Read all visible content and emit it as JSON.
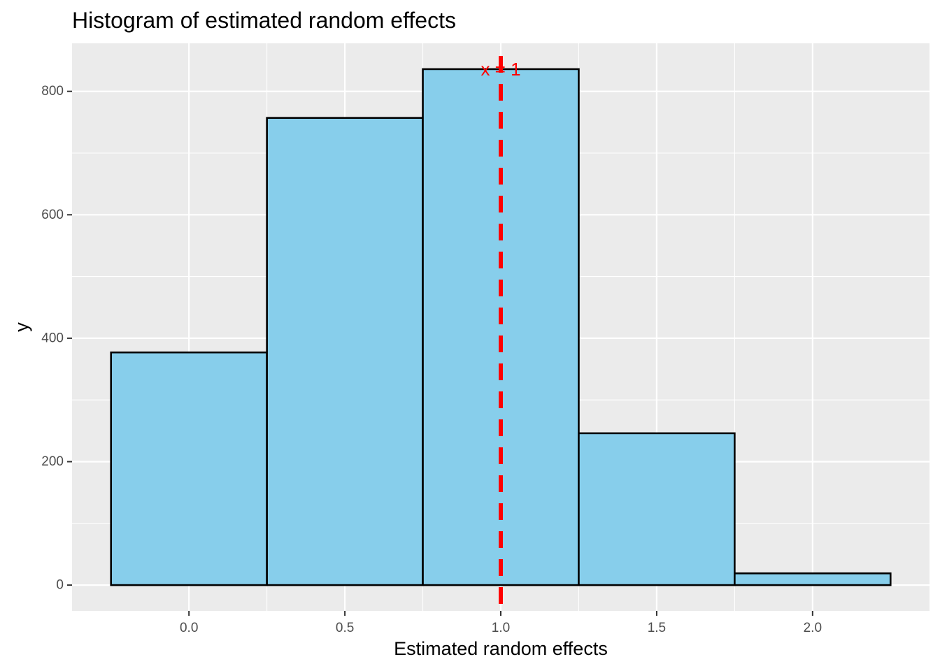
{
  "chart_data": {
    "type": "bar",
    "title": "Histogram of estimated random effects",
    "xlabel": "Estimated random effects",
    "ylabel": "y",
    "bin_width": 0.5,
    "bins": [
      {
        "center": 0.0,
        "count": 377
      },
      {
        "center": 0.5,
        "count": 757
      },
      {
        "center": 1.0,
        "count": 836
      },
      {
        "center": 1.5,
        "count": 246
      },
      {
        "center": 2.0,
        "count": 19
      }
    ],
    "xlim": [
      -0.375,
      2.375
    ],
    "ylim": [
      -41.8,
      877.8
    ],
    "x_ticks": [
      {
        "value": 0.0,
        "label": "0.0"
      },
      {
        "value": 0.5,
        "label": "0.5"
      },
      {
        "value": 1.0,
        "label": "1.0"
      },
      {
        "value": 1.5,
        "label": "1.5"
      },
      {
        "value": 2.0,
        "label": "2.0"
      }
    ],
    "y_ticks": [
      {
        "value": 0,
        "label": "0"
      },
      {
        "value": 200,
        "label": "200"
      },
      {
        "value": 400,
        "label": "400"
      },
      {
        "value": 600,
        "label": "600"
      },
      {
        "value": 800,
        "label": "800"
      }
    ],
    "vline": {
      "x": 1.0,
      "label": "x = 1",
      "label_y": 836
    },
    "grid": true,
    "colors": {
      "panel": "#ebebeb",
      "grid": "#ffffff",
      "bar_fill": "#87ceeb",
      "bar_stroke": "#000000",
      "vline": "#ff0000",
      "tick_text": "#4d4d4d",
      "tick_mark": "#333333"
    }
  }
}
